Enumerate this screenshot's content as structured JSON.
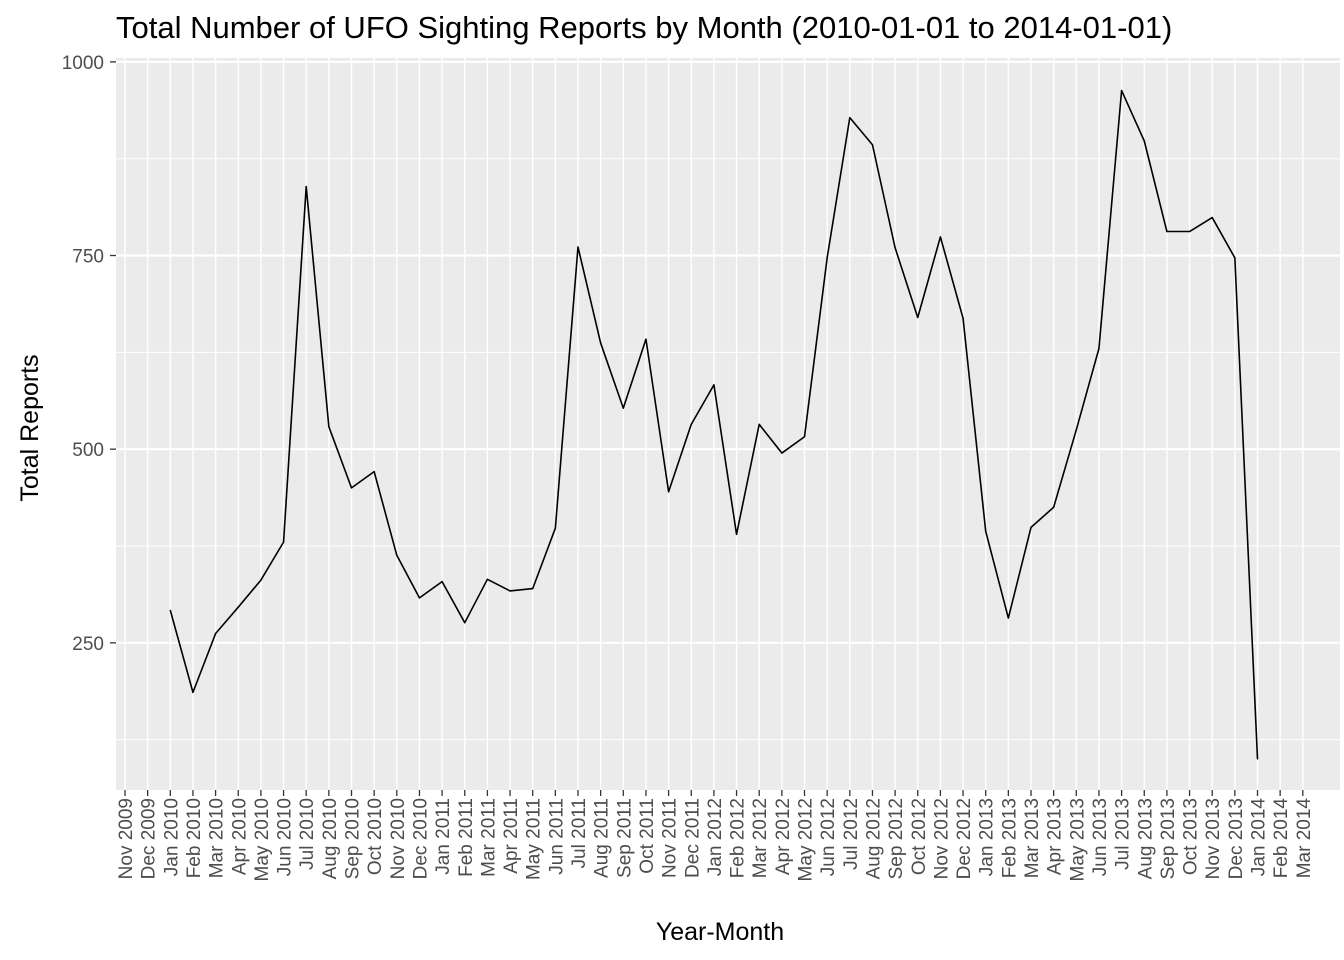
{
  "chart_data": {
    "type": "line",
    "title": "Total Number of UFO Sighting Reports by Month (2010-01-01 to 2014-01-01)",
    "xlabel": "Year-Month",
    "ylabel": "Total Reports",
    "x_tick_labels": [
      "Nov 2009",
      "Dec 2009",
      "Jan 2010",
      "Feb 2010",
      "Mar 2010",
      "Apr 2010",
      "May 2010",
      "Jun 2010",
      "Jul 2010",
      "Aug 2010",
      "Sep 2010",
      "Oct 2010",
      "Nov 2010",
      "Dec 2010",
      "Jan 2011",
      "Feb 2011",
      "Mar 2011",
      "Apr 2011",
      "May 2011",
      "Jun 2011",
      "Jul 2011",
      "Aug 2011",
      "Sep 2011",
      "Oct 2011",
      "Nov 2011",
      "Dec 2011",
      "Jan 2012",
      "Feb 2012",
      "Mar 2012",
      "Apr 2012",
      "May 2012",
      "Jun 2012",
      "Jul 2012",
      "Aug 2012",
      "Sep 2012",
      "Oct 2012",
      "Nov 2012",
      "Dec 2012",
      "Jan 2013",
      "Feb 2013",
      "Mar 2013",
      "Apr 2013",
      "May 2013",
      "Jun 2013",
      "Jul 2013",
      "Aug 2013",
      "Sep 2013",
      "Oct 2013",
      "Nov 2013",
      "Dec 2013",
      "Jan 2014",
      "Feb 2014",
      "Mar 2014"
    ],
    "y_ticks": [
      250,
      500,
      750,
      1000
    ],
    "ylim": [
      60,
      1005
    ],
    "series": [
      {
        "x": [
          "Jan 2010",
          "Feb 2010",
          "Mar 2010",
          "Apr 2010",
          "May 2010",
          "Jun 2010",
          "Jul 2010",
          "Aug 2010",
          "Sep 2010",
          "Oct 2010",
          "Nov 2010",
          "Dec 2010",
          "Jan 2011",
          "Feb 2011",
          "Mar 2011",
          "Apr 2011",
          "May 2011",
          "Jun 2011",
          "Jul 2011",
          "Aug 2011",
          "Sep 2011",
          "Oct 2011",
          "Nov 2011",
          "Dec 2011",
          "Jan 2012",
          "Feb 2012",
          "Mar 2012",
          "Apr 2012",
          "May 2012",
          "Jun 2012",
          "Jul 2012",
          "Aug 2012",
          "Sep 2012",
          "Oct 2012",
          "Nov 2012",
          "Dec 2012",
          "Jan 2013",
          "Feb 2013",
          "Mar 2013",
          "Apr 2013",
          "May 2013",
          "Jun 2013",
          "Jul 2013",
          "Aug 2013",
          "Sep 2013",
          "Oct 2013",
          "Nov 2013",
          "Dec 2013",
          "Jan 2014"
        ],
        "values": [
          292,
          186,
          262,
          296,
          331,
          380,
          839,
          529,
          450,
          471,
          363,
          308,
          329,
          276,
          332,
          317,
          320,
          398,
          761,
          637,
          553,
          642,
          445,
          532,
          583,
          390,
          532,
          495,
          516,
          747,
          928,
          893,
          760,
          670,
          774,
          669,
          394,
          282,
          399,
          425,
          525,
          630,
          963,
          898,
          781,
          781,
          799,
          747,
          100
        ]
      }
    ],
    "colors": {
      "panel": "#ebebeb",
      "grid": "#ffffff",
      "line": "#000000"
    }
  }
}
